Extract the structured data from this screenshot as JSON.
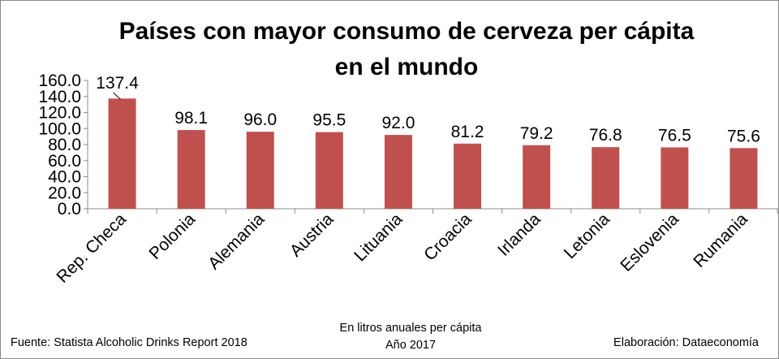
{
  "chart_data": {
    "type": "bar",
    "title_line1": "Países con mayor consumo de cerveza per cápita",
    "title_line2": "en el mundo",
    "categories": [
      "Rep. Checa",
      "Polonia",
      "Alemania",
      "Austria",
      "Lituania",
      "Croacia",
      "Irlanda",
      "Letonia",
      "Eslovenia",
      "Rumania"
    ],
    "values": [
      137.4,
      98.1,
      96.0,
      95.5,
      92.0,
      81.2,
      79.2,
      76.8,
      76.5,
      75.6
    ],
    "value_labels": [
      "137.4",
      "98.1",
      "96.0",
      "95.5",
      "92.0",
      "81.2",
      "79.2",
      "76.8",
      "76.5",
      "75.6"
    ],
    "y_ticks": [
      "0.0",
      "20.0",
      "40.0",
      "60.0",
      "80.0",
      "100.0",
      "120.0",
      "140.0",
      "160.0"
    ],
    "ylim": [
      0,
      160
    ],
    "grid": false,
    "bar_color": "#c0504d",
    "subtitle_line1": "En litros anuales per cápita",
    "subtitle_line2": "Año 2017"
  },
  "footer": {
    "source": "Fuente:  Statista Alcoholic Drinks Report 2018",
    "credit": "Elaboración: Dataeconomía"
  }
}
